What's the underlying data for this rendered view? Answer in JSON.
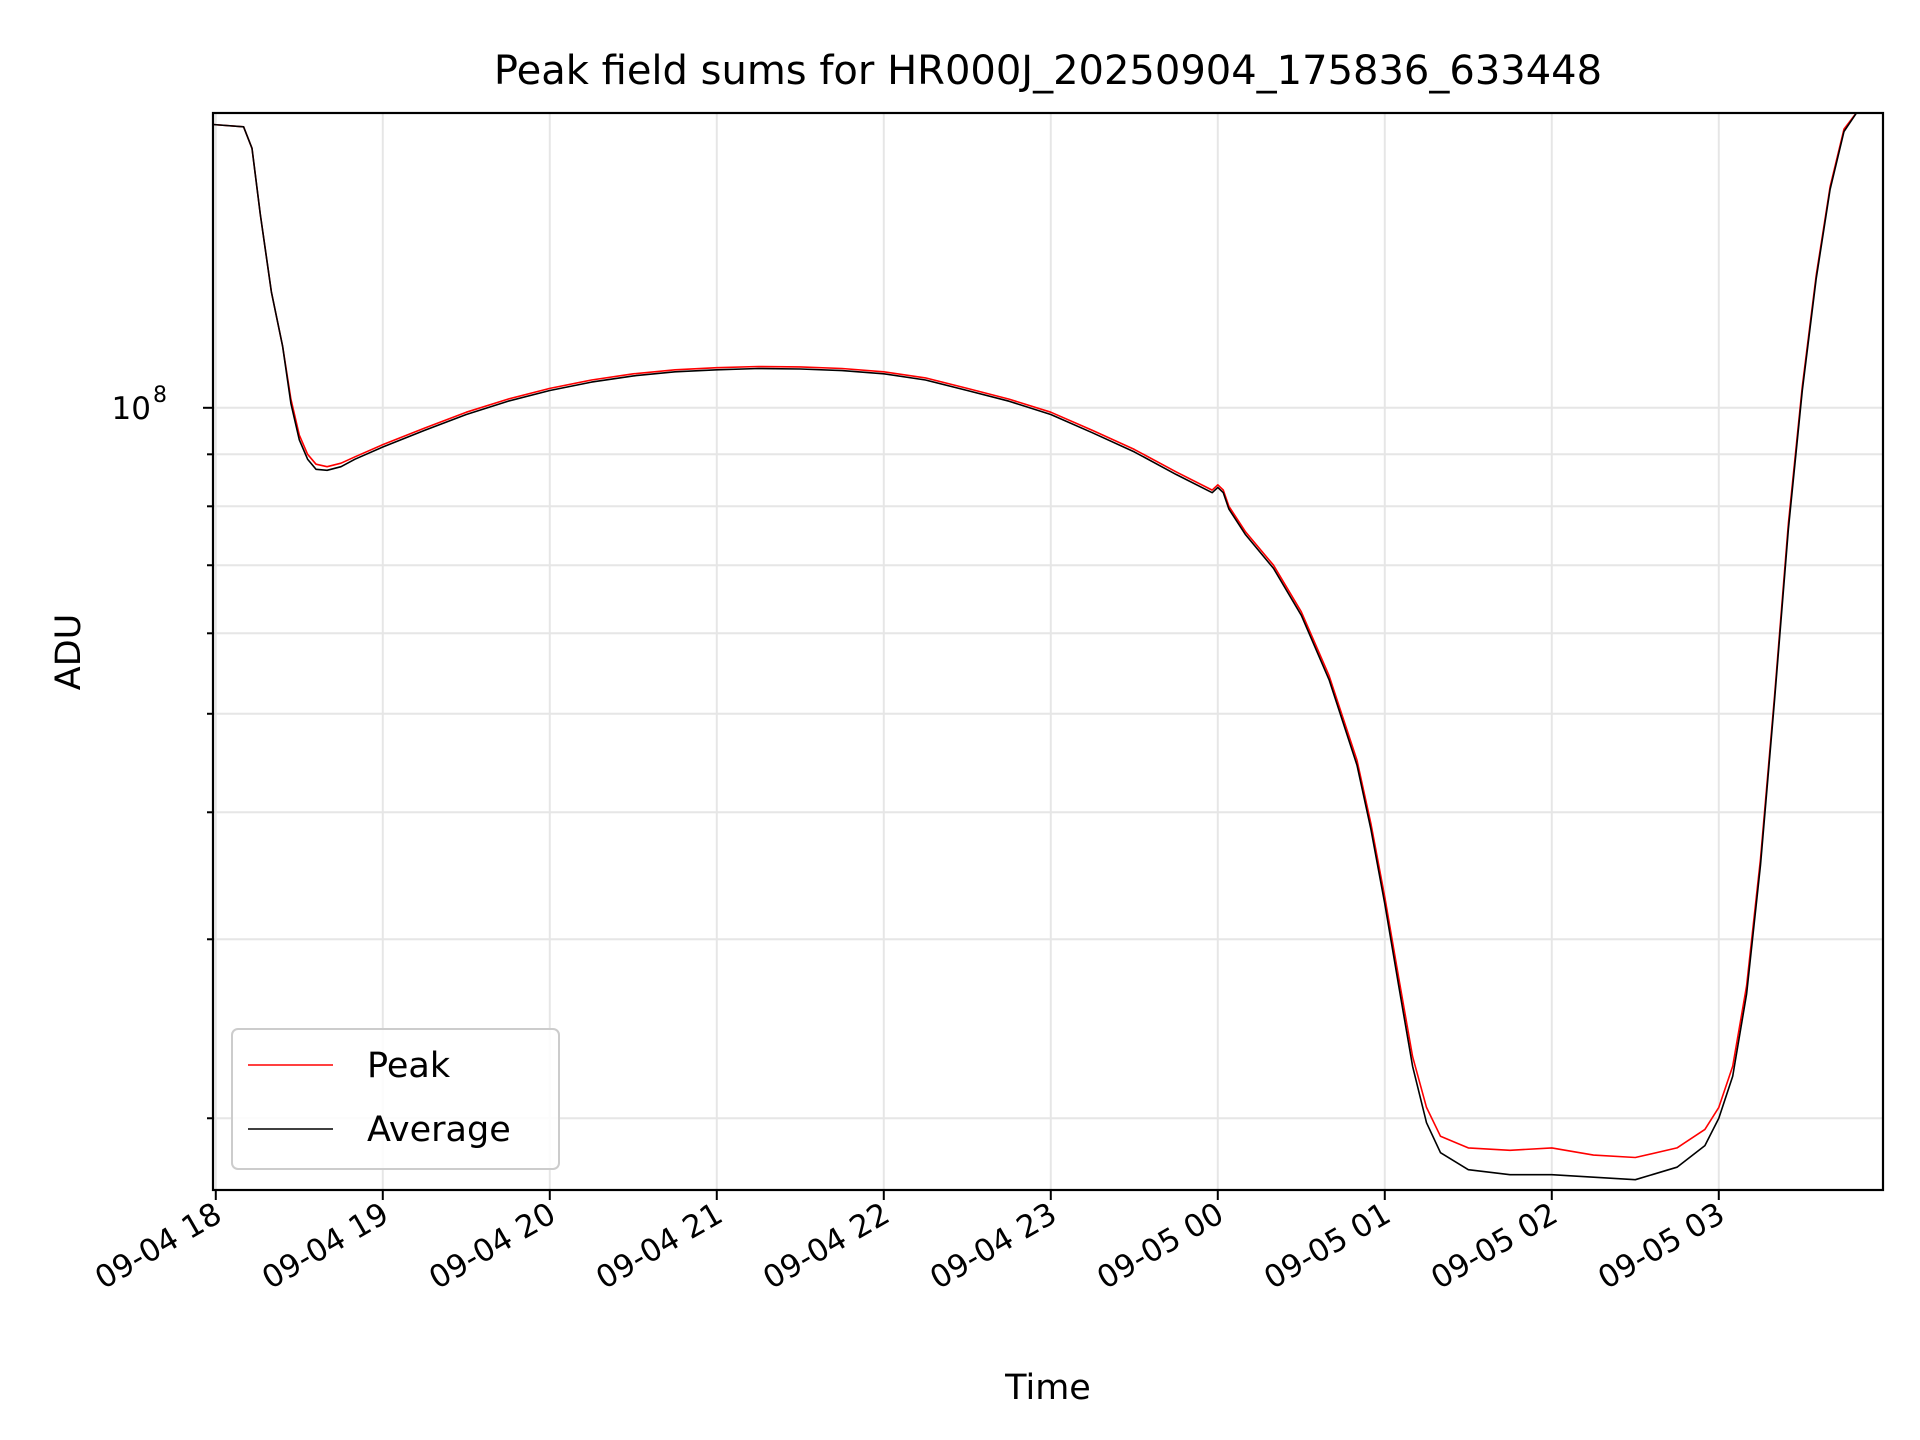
{
  "chart_data": {
    "type": "line",
    "title": "Peak field sums for HR000J_20250904_175836_633448",
    "xlabel": "Time",
    "ylabel": "ADU",
    "y_scale": "log",
    "ylim": [
      17000000,
      195000000
    ],
    "xlim": [
      "2025-09-04 17:59",
      "2025-09-05 03:59"
    ],
    "x_ticks": [
      "09-04 18",
      "09-04 19",
      "09-04 20",
      "09-04 21",
      "09-04 22",
      "09-04 23",
      "09-05 00",
      "09-05 01",
      "09-05 02",
      "09-05 03"
    ],
    "y_major_tick_label": {
      "base": "10",
      "exponent": "8",
      "value": 100000000
    },
    "y_minor_ticks": [
      20000000,
      30000000,
      40000000,
      50000000,
      60000000,
      70000000,
      80000000,
      90000000
    ],
    "grid": true,
    "legend_position": "lower-left",
    "colors": {
      "peak": "#ff0000",
      "average": "#000000"
    },
    "series": [
      {
        "name": "Peak",
        "x": [
          "2025-09-04 17:59",
          "2025-09-04 18:10",
          "2025-09-04 18:13",
          "2025-09-04 18:16",
          "2025-09-04 18:20",
          "2025-09-04 18:24",
          "2025-09-04 18:27",
          "2025-09-04 18:30",
          "2025-09-04 18:33",
          "2025-09-04 18:36",
          "2025-09-04 18:40",
          "2025-09-04 18:45",
          "2025-09-04 18:50",
          "2025-09-04 19:00",
          "2025-09-04 19:15",
          "2025-09-04 19:30",
          "2025-09-04 19:45",
          "2025-09-04 20:00",
          "2025-09-04 20:15",
          "2025-09-04 20:30",
          "2025-09-04 20:45",
          "2025-09-04 21:00",
          "2025-09-04 21:15",
          "2025-09-04 21:30",
          "2025-09-04 21:45",
          "2025-09-04 22:00",
          "2025-09-04 22:15",
          "2025-09-04 22:30",
          "2025-09-04 22:45",
          "2025-09-04 23:00",
          "2025-09-04 23:15",
          "2025-09-04 23:30",
          "2025-09-04 23:45",
          "2025-09-04 23:58",
          "2025-09-05 00:00",
          "2025-09-05 00:02",
          "2025-09-05 00:04",
          "2025-09-05 00:10",
          "2025-09-05 00:20",
          "2025-09-05 00:30",
          "2025-09-05 00:40",
          "2025-09-05 00:50",
          "2025-09-05 00:55",
          "2025-09-05 01:00",
          "2025-09-05 01:05",
          "2025-09-05 01:10",
          "2025-09-05 01:15",
          "2025-09-05 01:20",
          "2025-09-05 01:30",
          "2025-09-05 01:45",
          "2025-09-05 02:00",
          "2025-09-05 02:15",
          "2025-09-05 02:30",
          "2025-09-05 02:45",
          "2025-09-05 02:55",
          "2025-09-05 03:00",
          "2025-09-05 03:05",
          "2025-09-05 03:10",
          "2025-09-05 03:15",
          "2025-09-05 03:20",
          "2025-09-05 03:25",
          "2025-09-05 03:30",
          "2025-09-05 03:35",
          "2025-09-05 03:40",
          "2025-09-05 03:45",
          "2025-09-05 03:50"
        ],
        "y": [
          190000000,
          189000000,
          180000000,
          155000000,
          130000000,
          115000000,
          102000000,
          94000000,
          90000000,
          88000000,
          87500000,
          88200000,
          89500000,
          92000000,
          95500000,
          99000000,
          102000000,
          104500000,
          106500000,
          108000000,
          109000000,
          109500000,
          109800000,
          109700000,
          109300000,
          108500000,
          107000000,
          104500000,
          102000000,
          99000000,
          95000000,
          91000000,
          86500000,
          83000000,
          84000000,
          83000000,
          80000000,
          75500000,
          70000000,
          63000000,
          54500000,
          45000000,
          39000000,
          33000000,
          27500000,
          23000000,
          20500000,
          19200000,
          18700000,
          18600000,
          18700000,
          18400000,
          18300000,
          18700000,
          19500000,
          20500000,
          22500000,
          27000000,
          36000000,
          52000000,
          77000000,
          105000000,
          135000000,
          165000000,
          188000000,
          196000000
        ]
      },
      {
        "name": "Average",
        "x": [
          "2025-09-04 17:59",
          "2025-09-04 18:10",
          "2025-09-04 18:13",
          "2025-09-04 18:16",
          "2025-09-04 18:20",
          "2025-09-04 18:24",
          "2025-09-04 18:27",
          "2025-09-04 18:30",
          "2025-09-04 18:33",
          "2025-09-04 18:36",
          "2025-09-04 18:40",
          "2025-09-04 18:45",
          "2025-09-04 18:50",
          "2025-09-04 19:00",
          "2025-09-04 19:15",
          "2025-09-04 19:30",
          "2025-09-04 19:45",
          "2025-09-04 20:00",
          "2025-09-04 20:15",
          "2025-09-04 20:30",
          "2025-09-04 20:45",
          "2025-09-04 21:00",
          "2025-09-04 21:15",
          "2025-09-04 21:30",
          "2025-09-04 21:45",
          "2025-09-04 22:00",
          "2025-09-04 22:15",
          "2025-09-04 22:30",
          "2025-09-04 22:45",
          "2025-09-04 23:00",
          "2025-09-04 23:15",
          "2025-09-04 23:30",
          "2025-09-04 23:45",
          "2025-09-04 23:58",
          "2025-09-05 00:00",
          "2025-09-05 00:02",
          "2025-09-05 00:04",
          "2025-09-05 00:10",
          "2025-09-05 00:20",
          "2025-09-05 00:30",
          "2025-09-05 00:40",
          "2025-09-05 00:50",
          "2025-09-05 00:55",
          "2025-09-05 01:00",
          "2025-09-05 01:05",
          "2025-09-05 01:10",
          "2025-09-05 01:15",
          "2025-09-05 01:20",
          "2025-09-05 01:30",
          "2025-09-05 01:45",
          "2025-09-05 02:00",
          "2025-09-05 02:15",
          "2025-09-05 02:30",
          "2025-09-05 02:45",
          "2025-09-05 02:55",
          "2025-09-05 03:00",
          "2025-09-05 03:05",
          "2025-09-05 03:10",
          "2025-09-05 03:15",
          "2025-09-05 03:20",
          "2025-09-05 03:25",
          "2025-09-05 03:30",
          "2025-09-05 03:35",
          "2025-09-05 03:40",
          "2025-09-05 03:45",
          "2025-09-05 03:50"
        ],
        "y": [
          190000000,
          189000000,
          180000000,
          155000000,
          130000000,
          115000000,
          101000000,
          93000000,
          89000000,
          87000000,
          86800000,
          87500000,
          89000000,
          91500000,
          95000000,
          98500000,
          101500000,
          104000000,
          106000000,
          107500000,
          108500000,
          109000000,
          109300000,
          109200000,
          108800000,
          108000000,
          106500000,
          104000000,
          101500000,
          98500000,
          94500000,
          90500000,
          86000000,
          82500000,
          83500000,
          82500000,
          79500000,
          75000000,
          69500000,
          62500000,
          54000000,
          44500000,
          38500000,
          32500000,
          27000000,
          22500000,
          19800000,
          18500000,
          17800000,
          17600000,
          17600000,
          17500000,
          17400000,
          17900000,
          18800000,
          20000000,
          22000000,
          26500000,
          35500000,
          51500000,
          76000000,
          104000000,
          134000000,
          164000000,
          187000000,
          196000000
        ]
      }
    ]
  }
}
